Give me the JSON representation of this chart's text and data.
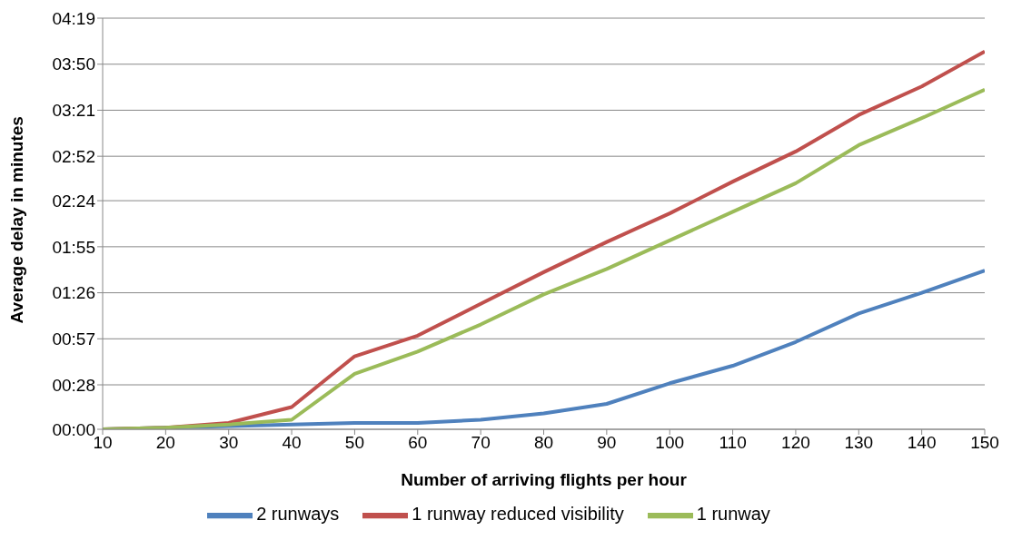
{
  "chart_data": {
    "type": "line",
    "xlabel": "Number of arriving flights per hour",
    "ylabel": "Average delay in minutes",
    "x": [
      10,
      20,
      30,
      40,
      50,
      60,
      70,
      80,
      90,
      100,
      110,
      120,
      130,
      140,
      150
    ],
    "series": [
      {
        "name": "2 runways",
        "color": "#4f81bd",
        "values": [
          0,
          1,
          2,
          3,
          4,
          4,
          6,
          10,
          16,
          29,
          40,
          55,
          73,
          86,
          100
        ]
      },
      {
        "name": "1 runway reduced visibility",
        "color": "#c0504d",
        "values": [
          0,
          1,
          4,
          14,
          46,
          59,
          79,
          99,
          118,
          136,
          156,
          175,
          198,
          216,
          238
        ]
      },
      {
        "name": "1 runway",
        "color": "#9bbb59",
        "values": [
          0,
          1,
          3,
          6,
          35,
          49,
          66,
          85,
          101,
          119,
          137,
          155,
          179,
          196,
          214
        ]
      }
    ],
    "xlim": [
      10,
      150
    ],
    "xticks": [
      10,
      20,
      30,
      40,
      50,
      60,
      70,
      80,
      90,
      100,
      110,
      120,
      130,
      140,
      150
    ],
    "ylim": [
      0,
      259
    ],
    "yticks": [
      {
        "value": 0,
        "label": "00:00"
      },
      {
        "value": 28,
        "label": "00:28"
      },
      {
        "value": 57,
        "label": "00:57"
      },
      {
        "value": 86,
        "label": "01:26"
      },
      {
        "value": 115,
        "label": "01:55"
      },
      {
        "value": 144,
        "label": "02:24"
      },
      {
        "value": 172,
        "label": "02:52"
      },
      {
        "value": 201,
        "label": "03:21"
      },
      {
        "value": 230,
        "label": "03:50"
      },
      {
        "value": 259,
        "label": "04:19"
      }
    ],
    "grid": "y",
    "legend": "bottom",
    "marker": "none",
    "line_style": "solid"
  }
}
